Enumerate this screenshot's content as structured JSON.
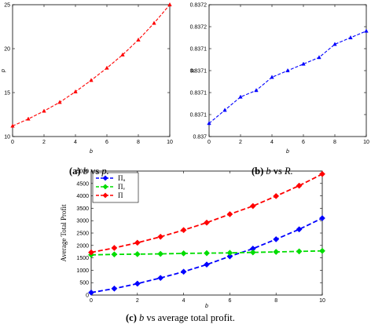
{
  "captions": [
    {
      "label": "(a)",
      "var1": "b",
      "mid": " vs ",
      "var2": "p."
    },
    {
      "label": "(b)",
      "var1": "b",
      "mid": " vs ",
      "var2": "R."
    },
    {
      "label": "(c)",
      "var1": "b",
      "mid": " vs average total profit.",
      "var2": ""
    }
  ],
  "chart_data": [
    {
      "type": "line",
      "title": "",
      "xlabel": "b",
      "ylabel": "p",
      "xlim": [
        0,
        10
      ],
      "ylim": [
        10,
        25
      ],
      "xticks": [
        "0",
        "2",
        "4",
        "6",
        "8",
        "10"
      ],
      "yticks": [
        "10",
        "15",
        "20",
        "25"
      ],
      "x": [
        0,
        1,
        2,
        3,
        4,
        5,
        6,
        7,
        8,
        9,
        10
      ],
      "series": [
        {
          "color": "#ff0000",
          "values": [
            11.2,
            12.0,
            12.9,
            13.9,
            15.1,
            16.4,
            17.8,
            19.3,
            21.0,
            22.9,
            25.0
          ]
        }
      ],
      "grid": false
    },
    {
      "type": "line",
      "title": "",
      "xlabel": "b",
      "ylabel": "R",
      "xlim": [
        0,
        10
      ],
      "ylim": [
        0.837,
        0.8372
      ],
      "xticks": [
        "0",
        "2",
        "4",
        "6",
        "8",
        "10"
      ],
      "yticks": [
        "0.837",
        "0.8371",
        "0.8371",
        "0.8371",
        "0.8371",
        "0.8372",
        "0.8372"
      ],
      "x": [
        0,
        1,
        2,
        3,
        4,
        5,
        6,
        7,
        8,
        9,
        10
      ],
      "series": [
        {
          "color": "#0000ff",
          "values": [
            0.83702,
            0.83704,
            0.83706,
            0.83707,
            0.83709,
            0.8371,
            0.83711,
            0.83712,
            0.83714,
            0.83715,
            0.83716
          ]
        }
      ],
      "grid": false
    },
    {
      "type": "line",
      "title": "",
      "xlabel": "b",
      "ylabel": "Average Total Profit",
      "xlim": [
        0,
        10
      ],
      "ylim": [
        0,
        5000
      ],
      "xticks": [
        "0",
        "2",
        "4",
        "6",
        "8",
        "10"
      ],
      "yticks": [
        "0",
        "500",
        "1000",
        "1500",
        "2000",
        "2500",
        "3000",
        "3500",
        "4000",
        "4500",
        "5000"
      ],
      "x": [
        0,
        1,
        2,
        3,
        4,
        5,
        6,
        7,
        8,
        9,
        10
      ],
      "legend": "top-left",
      "series": [
        {
          "name": "Πᵤ",
          "color": "#0000ff",
          "values": [
            100,
            260,
            460,
            690,
            940,
            1230,
            1560,
            1870,
            2250,
            2650,
            3100
          ]
        },
        {
          "name": "Πᵥ",
          "color": "#00dd00",
          "values": [
            1620,
            1640,
            1650,
            1660,
            1680,
            1690,
            1700,
            1720,
            1740,
            1760,
            1780
          ]
        },
        {
          "name": "Π",
          "color": "#ff0000",
          "values": [
            1720,
            1900,
            2110,
            2350,
            2620,
            2920,
            3260,
            3590,
            3990,
            4410,
            4880
          ]
        }
      ],
      "grid": false
    }
  ]
}
